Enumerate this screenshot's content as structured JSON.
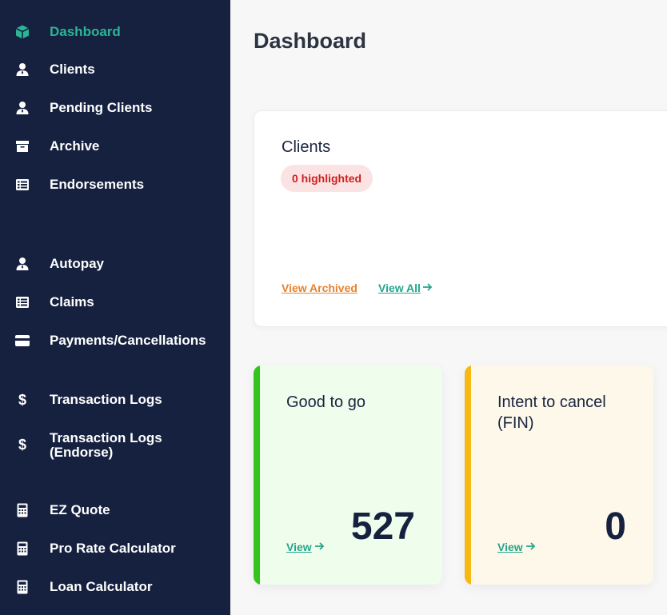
{
  "sidebar": {
    "items": [
      {
        "label": "Dashboard",
        "icon": "box-icon",
        "active": true
      },
      {
        "label": "Clients",
        "icon": "user-icon"
      },
      {
        "label": "Pending Clients",
        "icon": "user-icon"
      },
      {
        "label": "Archive",
        "icon": "archive-icon"
      },
      {
        "label": "Endorsements",
        "icon": "list-icon"
      },
      {
        "label": "Autopay",
        "icon": "user-icon"
      },
      {
        "label": "Claims",
        "icon": "list-icon"
      },
      {
        "label": "Payments/Cancellations",
        "icon": "credit-card-icon"
      },
      {
        "label": "Transaction Logs",
        "icon": "dollar-icon"
      },
      {
        "label": "Transaction Logs (Endorse)",
        "icon": "dollar-icon"
      },
      {
        "label": "EZ Quote",
        "icon": "calculator-icon"
      },
      {
        "label": "Pro Rate Calculator",
        "icon": "calculator-icon"
      },
      {
        "label": "Loan Calculator",
        "icon": "calculator-icon"
      }
    ]
  },
  "main": {
    "title": "Dashboard",
    "clients_card": {
      "title": "Clients",
      "badge": "0 highlighted",
      "view_archived": "View Archived",
      "view_all": "View All"
    },
    "stat_cards": [
      {
        "title": "Good to go",
        "view": "View",
        "value": "527",
        "accent": "#35c41b"
      },
      {
        "title": "Intent to cancel (FIN)",
        "view": "View",
        "value": "0",
        "accent": "#f6b812"
      }
    ]
  },
  "colors": {
    "sidebar_bg": "#15213f",
    "active": "#2bb596",
    "link": "#25a58b",
    "archived_link": "#e8822f",
    "badge_text": "#d01f1f"
  }
}
